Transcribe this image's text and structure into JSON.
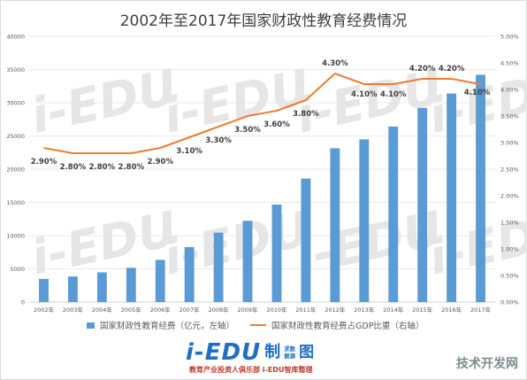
{
  "chart_data": {
    "type": "bar+line",
    "title": "2002年至2017年国家财政性教育经费情况",
    "categories": [
      "2002年",
      "2003年",
      "2004年",
      "2005年",
      "2006年",
      "2007年",
      "2008年",
      "2009年",
      "2010年",
      "2011年",
      "2012年",
      "2013年",
      "2014年",
      "2015年",
      "2016年",
      "2017年"
    ],
    "series": [
      {
        "name": "国家财政性教育经费（亿元，左轴）",
        "type": "bar",
        "axis": "left",
        "color": "#5b9bd5",
        "values": [
          3491,
          3851,
          4466,
          5161,
          6348,
          8280,
          10450,
          12231,
          14670,
          18587,
          23148,
          24488,
          26421,
          29221,
          31396,
          34208
        ]
      },
      {
        "name": "国家财政性教育经费占GDP比重（右轴）",
        "type": "line",
        "axis": "right",
        "color": "#ed7d31",
        "values": [
          2.9,
          2.8,
          2.8,
          2.8,
          2.9,
          3.1,
          3.3,
          3.5,
          3.6,
          3.8,
          4.3,
          4.1,
          4.1,
          4.2,
          4.2,
          4.1
        ],
        "labels": [
          "2.90%",
          "2.80%",
          "2.80%",
          "2.80%",
          "2.90%",
          "3.10%",
          "3.30%",
          "3.50%",
          "3.60%",
          "3.80%",
          "4.30%",
          "4.10%",
          "4.10%",
          "4.20%",
          "4.20%",
          "4.10%"
        ]
      }
    ],
    "left_axis": {
      "min": 0,
      "max": 40000,
      "ticks": [
        "0",
        "5000",
        "10000",
        "15000",
        "20000",
        "25000",
        "30000",
        "35000",
        "40000"
      ]
    },
    "right_axis": {
      "min": 0,
      "max": 5,
      "ticks": [
        "0.00%",
        "0.50%",
        "1.00%",
        "1.50%",
        "2.00%",
        "2.50%",
        "3.00%",
        "3.50%",
        "4.00%",
        "4.50%",
        "5.00%"
      ]
    },
    "legend_position": "bottom",
    "grid": true
  },
  "watermark": {
    "text": "i-EDU",
    "color": "#e6e6e6"
  },
  "footer": {
    "logo_text": "i-EDU",
    "logo_zhi": "制",
    "logo_small_1": "求数",
    "logo_small_2": "据源",
    "logo_tu": "图",
    "tagline": "教育产业投资人俱乐部 i-EDU智库整理",
    "site_text": "技术开发网"
  }
}
